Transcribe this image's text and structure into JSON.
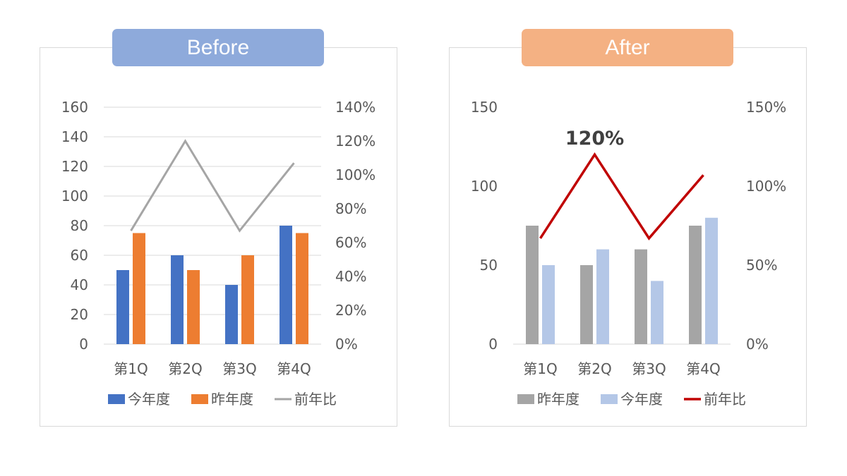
{
  "badges": {
    "before": "Before",
    "after": "After"
  },
  "chart_data": [
    {
      "type": "bar",
      "panel": "Before",
      "categories": [
        "第1Q",
        "第2Q",
        "第3Q",
        "第4Q"
      ],
      "series": [
        {
          "name": "今年度",
          "kind": "bar",
          "axis": "left",
          "color": "#4472c4",
          "values": [
            50,
            60,
            40,
            80
          ]
        },
        {
          "name": "昨年度",
          "kind": "bar",
          "axis": "left",
          "color": "#ed7d31",
          "values": [
            75,
            50,
            60,
            75
          ]
        },
        {
          "name": "前年比",
          "kind": "line",
          "axis": "right",
          "color": "#a5a5a5",
          "values": [
            67,
            120,
            67,
            107
          ]
        }
      ],
      "ylim": [
        0,
        160
      ],
      "yticks": [
        0,
        20,
        40,
        60,
        80,
        100,
        120,
        140,
        160
      ],
      "ylim_right": [
        0,
        140
      ],
      "yticks_right": [
        "0%",
        "20%",
        "40%",
        "60%",
        "80%",
        "100%",
        "120%",
        "140%"
      ],
      "legend": "bottom",
      "grid": true
    },
    {
      "type": "bar",
      "panel": "After",
      "categories": [
        "第1Q",
        "第2Q",
        "第3Q",
        "第4Q"
      ],
      "series": [
        {
          "name": "昨年度",
          "kind": "bar",
          "axis": "left",
          "color": "#a5a5a5",
          "values": [
            75,
            50,
            60,
            75
          ]
        },
        {
          "name": "今年度",
          "kind": "bar",
          "axis": "left",
          "color": "#b4c7e7",
          "values": [
            50,
            60,
            40,
            80
          ]
        },
        {
          "name": "前年比",
          "kind": "line",
          "axis": "right",
          "color": "#c00000",
          "values": [
            67,
            120,
            67,
            107
          ]
        }
      ],
      "ylim": [
        0,
        150
      ],
      "yticks": [
        0,
        50,
        100,
        150
      ],
      "ylim_right": [
        0,
        150
      ],
      "yticks_right": [
        "0%",
        "50%",
        "100%",
        "150%"
      ],
      "annotation": {
        "text": "120%",
        "category": "第2Q"
      },
      "legend": "bottom",
      "grid": false
    }
  ]
}
